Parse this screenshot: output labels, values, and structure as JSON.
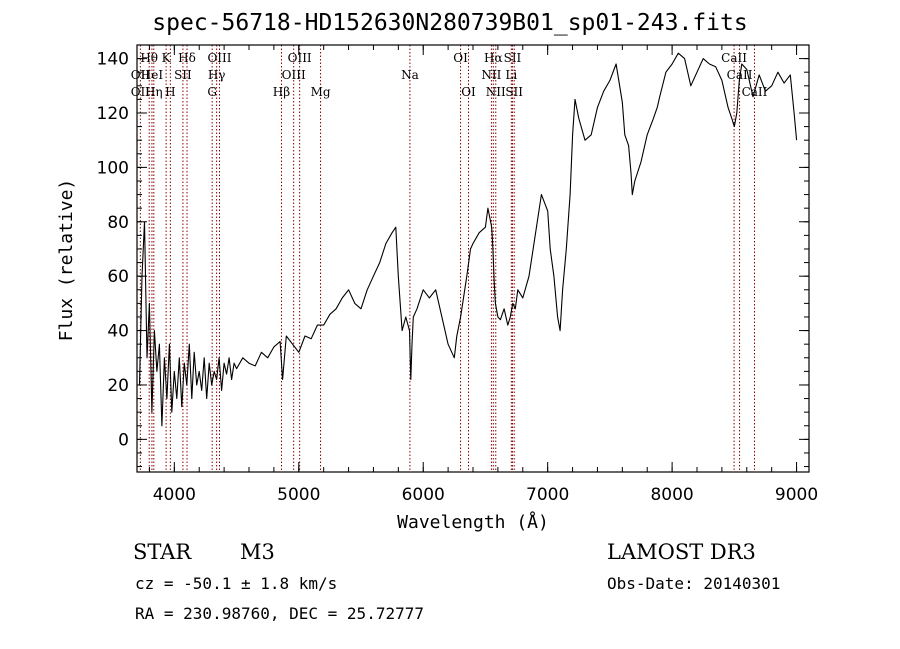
{
  "chart_data": {
    "type": "line",
    "title": "spec-56718-HD152630N280739B01_sp01-243.fits",
    "xlabel": "Wavelength (Å)",
    "ylabel": "Flux (relative)",
    "xlim": [
      3700,
      9100
    ],
    "ylim": [
      -12,
      145
    ],
    "xticks": [
      4000,
      5000,
      6000,
      7000,
      8000,
      9000
    ],
    "yticks": [
      0,
      20,
      40,
      60,
      80,
      100,
      120,
      140
    ],
    "line_color": "#000000",
    "marker_color": "#8b0000",
    "series": [
      {
        "name": "flux",
        "x": [
          3720,
          3740,
          3760,
          3780,
          3800,
          3820,
          3840,
          3860,
          3880,
          3900,
          3920,
          3940,
          3960,
          3980,
          4000,
          4020,
          4040,
          4060,
          4080,
          4100,
          4120,
          4140,
          4160,
          4180,
          4200,
          4220,
          4240,
          4260,
          4280,
          4300,
          4320,
          4340,
          4360,
          4380,
          4400,
          4420,
          4440,
          4460,
          4480,
          4500,
          4550,
          4600,
          4650,
          4700,
          4750,
          4800,
          4850,
          4870,
          4900,
          4950,
          5000,
          5050,
          5100,
          5150,
          5200,
          5250,
          5300,
          5350,
          5400,
          5450,
          5500,
          5550,
          5600,
          5650,
          5700,
          5750,
          5780,
          5800,
          5830,
          5860,
          5890,
          5900,
          5910,
          5920,
          5950,
          6000,
          6050,
          6100,
          6150,
          6200,
          6250,
          6270,
          6300,
          6350,
          6380,
          6400,
          6450,
          6500,
          6520,
          6550,
          6560,
          6570,
          6580,
          6600,
          6620,
          6650,
          6680,
          6700,
          6720,
          6740,
          6760,
          6800,
          6850,
          6900,
          6950,
          7000,
          7020,
          7050,
          7080,
          7100,
          7120,
          7150,
          7180,
          7200,
          7220,
          7250,
          7300,
          7350,
          7400,
          7450,
          7500,
          7550,
          7600,
          7620,
          7650,
          7670,
          7680,
          7700,
          7750,
          7800,
          7850,
          7880,
          7900,
          7950,
          8000,
          8050,
          8100,
          8150,
          8200,
          8250,
          8300,
          8350,
          8400,
          8450,
          8480,
          8500,
          8520,
          8540,
          8560,
          8600,
          8650,
          8700,
          8750,
          8800,
          8850,
          8900,
          8950,
          8980,
          9000
        ],
        "y": [
          20,
          60,
          80,
          30,
          50,
          10,
          40,
          25,
          35,
          5,
          30,
          15,
          35,
          10,
          25,
          15,
          30,
          12,
          28,
          20,
          35,
          15,
          32,
          20,
          25,
          18,
          30,
          15,
          28,
          20,
          25,
          22,
          30,
          18,
          28,
          24,
          30,
          22,
          28,
          26,
          30,
          28,
          27,
          32,
          30,
          34,
          36,
          22,
          38,
          35,
          32,
          38,
          37,
          42,
          42,
          46,
          48,
          52,
          55,
          50,
          48,
          55,
          60,
          65,
          72,
          76,
          78,
          60,
          40,
          45,
          40,
          22,
          35,
          45,
          48,
          55,
          52,
          55,
          45,
          35,
          30,
          38,
          45,
          60,
          70,
          72,
          76,
          78,
          85,
          78,
          70,
          58,
          50,
          45,
          44,
          48,
          42,
          45,
          50,
          48,
          55,
          52,
          60,
          75,
          90,
          84,
          70,
          60,
          45,
          40,
          55,
          70,
          90,
          112,
          125,
          118,
          110,
          112,
          122,
          128,
          132,
          138,
          124,
          112,
          108,
          98,
          90,
          95,
          102,
          112,
          118,
          122,
          126,
          135,
          138,
          142,
          140,
          130,
          135,
          140,
          138,
          137,
          132,
          122,
          118,
          115,
          120,
          132,
          138,
          136,
          126,
          134,
          128,
          130,
          135,
          131,
          134,
          120,
          110
        ]
      }
    ],
    "lines": [
      {
        "label": "Hθ",
        "x": 3798,
        "row": 1
      },
      {
        "label": "OII",
        "x": 3727,
        "row": 2
      },
      {
        "label": "OII",
        "x": 3727,
        "row": 3
      },
      {
        "label": "HeI",
        "x": 3820,
        "row": 2
      },
      {
        "label": "Hη",
        "x": 3835,
        "row": 3
      },
      {
        "label": "K",
        "x": 3934,
        "row": 1
      },
      {
        "label": "H",
        "x": 3968,
        "row": 3
      },
      {
        "label": "SII",
        "x": 4069,
        "row": 2
      },
      {
        "label": "Hδ",
        "x": 4102,
        "row": 1
      },
      {
        "label": "OIII",
        "x": 4363,
        "row": 1
      },
      {
        "label": "Hγ",
        "x": 4340,
        "row": 2
      },
      {
        "label": "G",
        "x": 4304,
        "row": 3
      },
      {
        "label": "Hβ",
        "x": 4861,
        "row": 3
      },
      {
        "label": "OIII",
        "x": 5007,
        "row": 1
      },
      {
        "label": "OIII",
        "x": 4959,
        "row": 2
      },
      {
        "label": "Mg",
        "x": 5175,
        "row": 3
      },
      {
        "label": "Na",
        "x": 5893,
        "row": 2
      },
      {
        "label": "OI",
        "x": 6300,
        "row": 1
      },
      {
        "label": "OI",
        "x": 6364,
        "row": 3
      },
      {
        "label": "Hα",
        "x": 6563,
        "row": 1
      },
      {
        "label": "NII",
        "x": 6548,
        "row": 2
      },
      {
        "label": "NII",
        "x": 6583,
        "row": 3
      },
      {
        "label": "SII",
        "x": 6717,
        "row": 1
      },
      {
        "label": "Li",
        "x": 6708,
        "row": 2
      },
      {
        "label": "SII",
        "x": 6731,
        "row": 3
      },
      {
        "label": "CaII",
        "x": 8498,
        "row": 1
      },
      {
        "label": "CaII",
        "x": 8542,
        "row": 2
      },
      {
        "label": "CaII",
        "x": 8662,
        "row": 3
      }
    ]
  },
  "info": {
    "obj_class": "STAR",
    "subclass": "M3",
    "survey": "LAMOST DR3",
    "cz": "cz = -50.1 ± 1.8 km/s",
    "obs_date": "Obs-Date: 20140301",
    "coords": "RA = 230.98760, DEC =  25.72777"
  }
}
